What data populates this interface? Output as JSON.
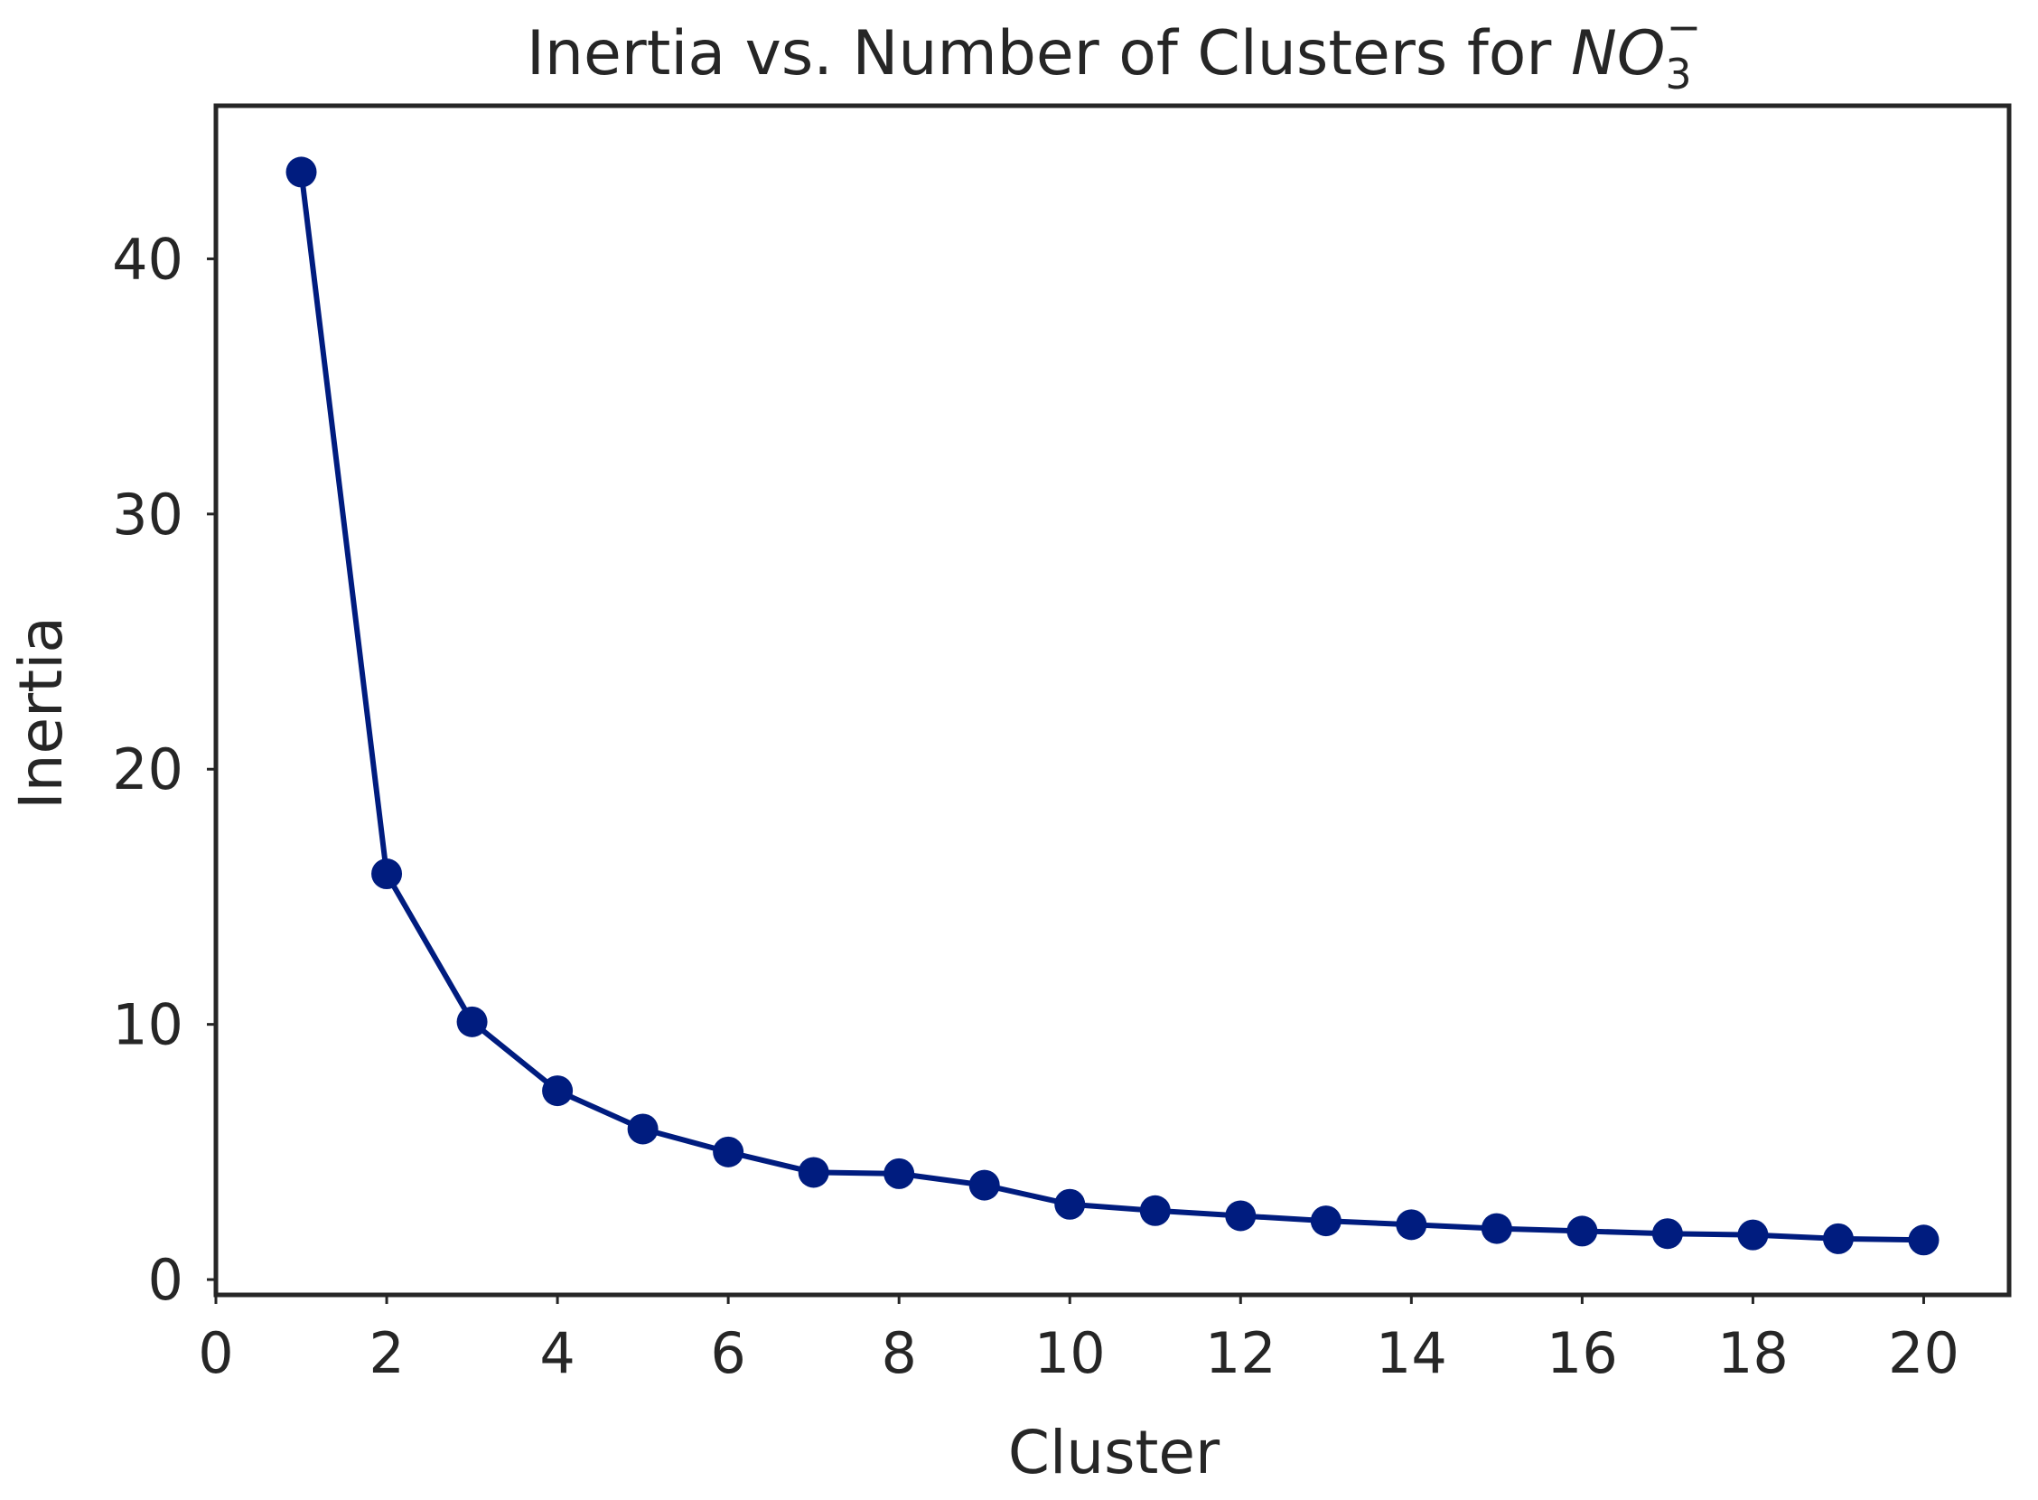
{
  "chart_data": {
    "type": "line",
    "title_text": "Inertia vs. Number of Clusters for ",
    "title_symbol": "NO",
    "title_subscript": "3",
    "title_superscript": "−",
    "xlabel": "Cluster",
    "ylabel": "Inertia",
    "xlim": [
      0,
      21
    ],
    "ylim": [
      -0.6,
      46
    ],
    "xticks": [
      0,
      2,
      4,
      6,
      8,
      10,
      12,
      14,
      16,
      18,
      20
    ],
    "yticks": [
      0,
      10,
      20,
      30,
      40
    ],
    "grid": false,
    "legend": "none",
    "line_color": "#001c7f",
    "frame_color": "#262626",
    "series": [
      {
        "name": "Inertia",
        "x": [
          1,
          2,
          3,
          4,
          5,
          6,
          7,
          8,
          9,
          10,
          11,
          12,
          13,
          14,
          15,
          16,
          17,
          18,
          19,
          20
        ],
        "values": [
          43.4,
          15.9,
          10.1,
          7.4,
          5.9,
          5.0,
          4.2,
          4.15,
          3.7,
          2.95,
          2.7,
          2.5,
          2.3,
          2.15,
          2.0,
          1.9,
          1.8,
          1.75,
          1.6,
          1.55
        ]
      }
    ]
  }
}
